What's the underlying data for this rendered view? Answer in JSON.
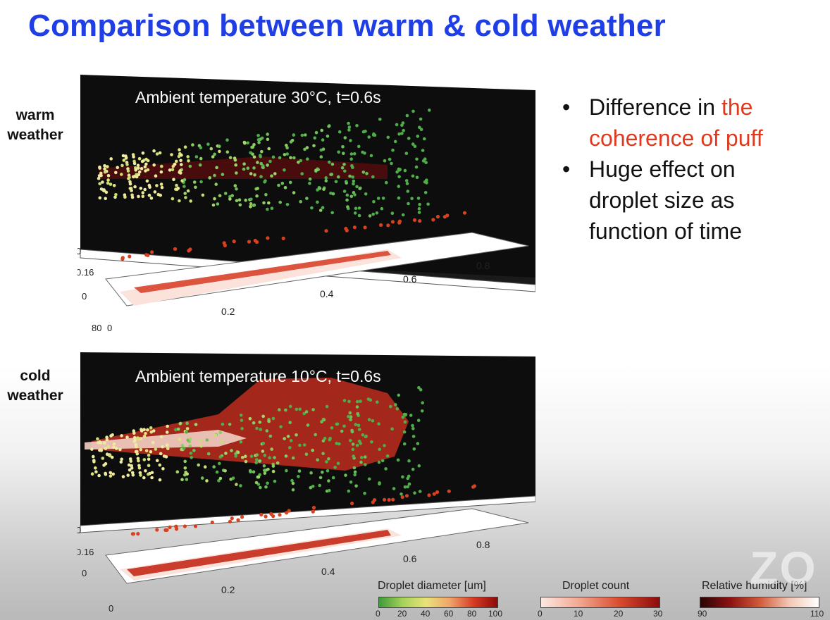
{
  "title": "Comparison between warm & cold weather",
  "warm_label_1": "warm",
  "warm_label_2": "weather",
  "cold_label_1": "cold",
  "cold_label_2": "weather",
  "bullets": [
    {
      "prefix": "Difference in ",
      "highlight": "the",
      "line2": "coherence of puff"
    },
    {
      "line1": "Huge effect on",
      "line2": "droplet size as",
      "line3": "function of time"
    }
  ],
  "panels": [
    {
      "caption": "Ambient temperature 30°C, t=0.6s",
      "axis_labels": {
        "z0": "0",
        "z016": "0.16",
        "y0": "0",
        "y80": "80",
        "x0": "0",
        "x02": "0.2",
        "x04": "0.4",
        "x06": "0.6",
        "x08": "0.8"
      }
    },
    {
      "caption": "Ambient temperature 10°C, t=0.6s",
      "axis_labels": {
        "z0": "0",
        "z016": "0.16",
        "y0": "0",
        "x0": "0",
        "x02": "0.2",
        "x04": "0.4",
        "x06": "0.6",
        "x08": "0.8"
      }
    }
  ],
  "legends": [
    {
      "title": "Droplet diameter [um]",
      "ticks": [
        "0",
        "20",
        "40",
        "60",
        "80",
        "100"
      ]
    },
    {
      "title": "Droplet count",
      "ticks": [
        "0",
        "10",
        "20",
        "30"
      ]
    },
    {
      "title": "Relative humidity [%]",
      "ticks": [
        "90",
        "110"
      ]
    }
  ],
  "watermark": "ZO",
  "colors": {
    "title": "#1f3ee6",
    "highlight": "#e0391e"
  }
}
